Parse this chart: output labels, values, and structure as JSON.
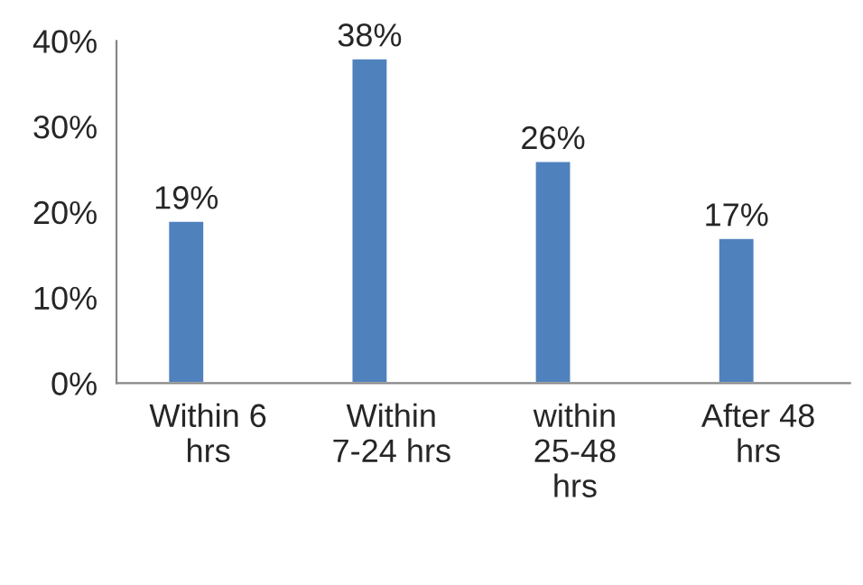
{
  "chart_data": {
    "type": "bar",
    "categories": [
      "Within 6\nhrs",
      "Within\n7-24 hrs",
      "within\n25-48\nhrs",
      "After 48\nhrs"
    ],
    "values": [
      19,
      38,
      26,
      17
    ],
    "color": "#4f81bd",
    "value_labels": [
      "19%",
      "38%",
      "26%",
      "17%"
    ],
    "ylim": [
      0,
      40
    ],
    "yticks": [
      {
        "value": 0,
        "label": "0%"
      },
      {
        "value": 10,
        "label": "10%"
      },
      {
        "value": 20,
        "label": "20%"
      },
      {
        "value": 30,
        "label": "30%"
      },
      {
        "value": 40,
        "label": "40%"
      }
    ],
    "grid": false,
    "legend": false
  }
}
